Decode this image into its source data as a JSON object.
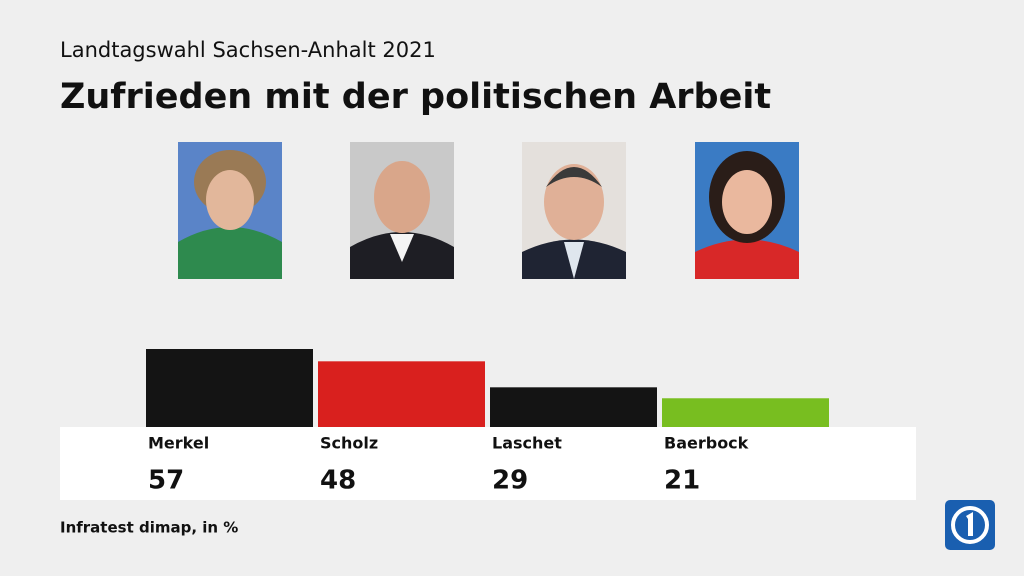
{
  "chart_data": {
    "type": "bar",
    "subtitle": "Landtagswahl Sachsen-Anhalt 2021",
    "title": "Zufrieden mit der politischen Arbeit",
    "categories": [
      "Merkel",
      "Scholz",
      "Laschet",
      "Baerbock"
    ],
    "values": [
      57,
      48,
      29,
      21
    ],
    "colors": [
      "#141414",
      "#d9201e",
      "#141414",
      "#78be20"
    ],
    "source": "Infratest dimap, in %"
  }
}
